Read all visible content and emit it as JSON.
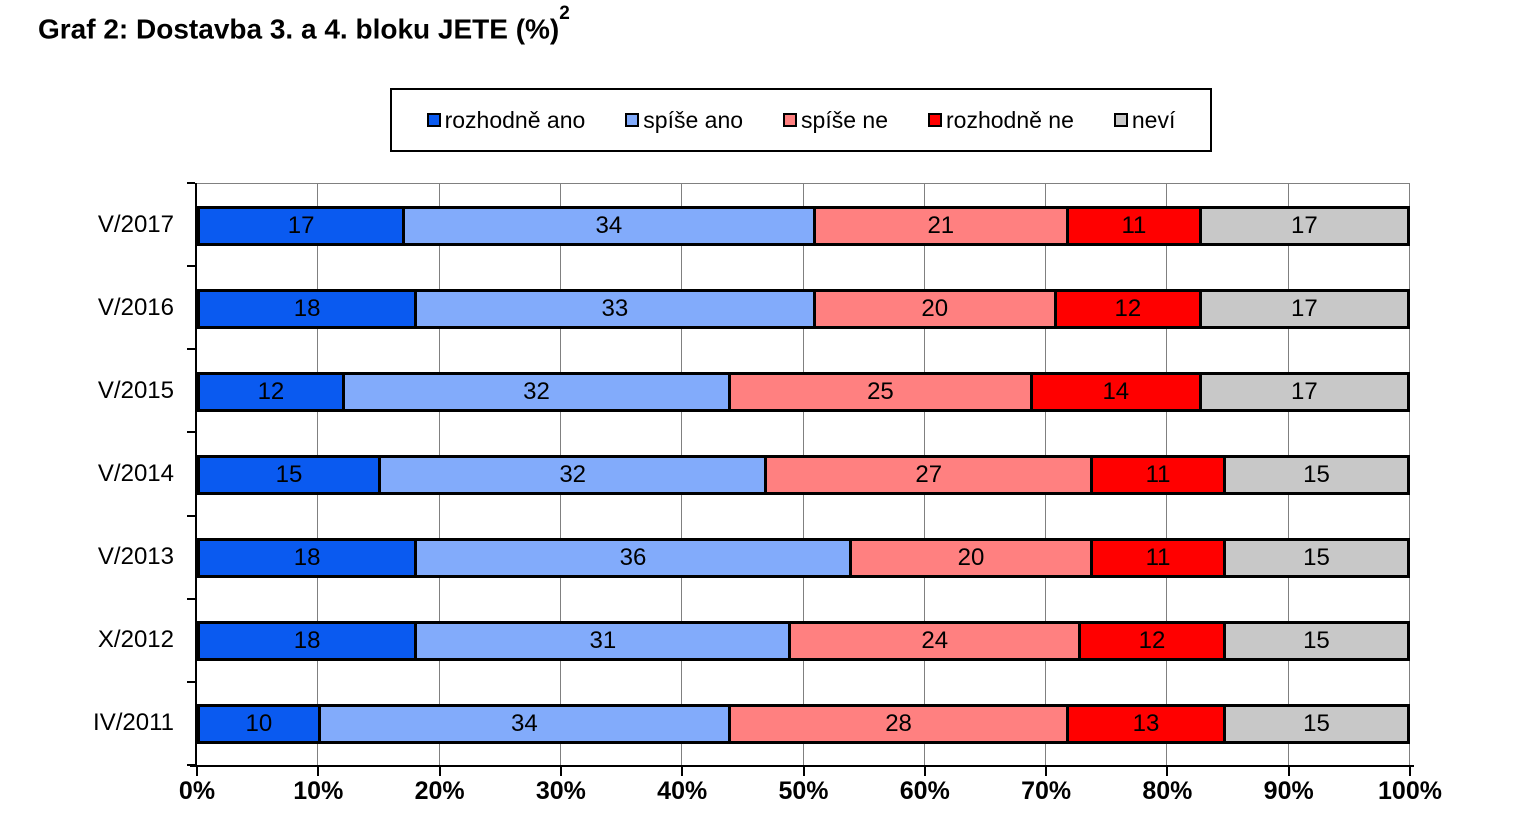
{
  "title": {
    "text": "Graf 2: Dostavba 3. a 4. bloku JETE (%)",
    "superscript": "2"
  },
  "chart_data": {
    "type": "bar",
    "orientation": "horizontal",
    "stacked": true,
    "grid": true,
    "legend_position": "top",
    "categories": [
      "V/2017",
      "V/2016",
      "V/2015",
      "V/2014",
      "V/2013",
      "X/2012",
      "IV/2011"
    ],
    "series": [
      {
        "name": "rozhodně ano",
        "color": "#0A5AF0",
        "values": [
          17,
          18,
          12,
          15,
          18,
          18,
          10
        ]
      },
      {
        "name": "spíše ano",
        "color": "#82ABFB",
        "values": [
          34,
          33,
          32,
          32,
          36,
          31,
          34
        ]
      },
      {
        "name": "spíše ne",
        "color": "#FF8080",
        "values": [
          21,
          20,
          25,
          27,
          20,
          24,
          28
        ]
      },
      {
        "name": "rozhodně ne",
        "color": "#FF0000",
        "values": [
          11,
          12,
          14,
          11,
          11,
          12,
          13
        ]
      },
      {
        "name": "neví",
        "color": "#C8C8C8",
        "values": [
          17,
          17,
          17,
          15,
          15,
          15,
          15
        ]
      }
    ],
    "x_axis": {
      "min": 0,
      "max": 100,
      "step": 10,
      "tick_labels": [
        "0%",
        "10%",
        "20%",
        "30%",
        "40%",
        "50%",
        "60%",
        "70%",
        "80%",
        "90%",
        "100%"
      ]
    }
  },
  "colors": {
    "grid": "#808080",
    "axis": "#000000",
    "bar_border": "#000000",
    "background": "#FFFFFF"
  }
}
